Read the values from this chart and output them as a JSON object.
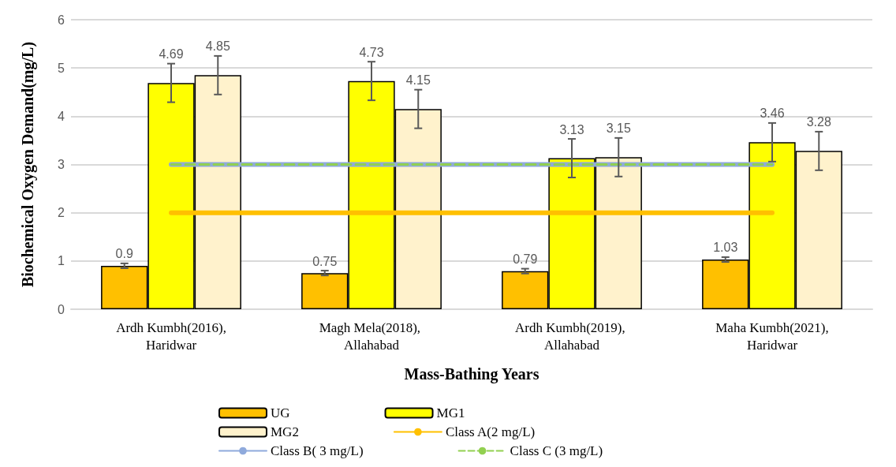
{
  "chart_data": {
    "type": "bar",
    "xlabel": "Mass-Bathing Years",
    "ylabel": "Biochemical Oxygen Demand(mg/L)",
    "categories": [
      "Ardh Kumbh(2016),Haridwar",
      "Magh Mela(2018), Allahabad",
      "Ardh Kumbh(2019), Allahabad",
      "Maha Kumbh(2021),Haridwar"
    ],
    "series": [
      {
        "name": "UG",
        "color": "#ffc000",
        "values": [
          0.9,
          0.75,
          0.79,
          1.03
        ],
        "errors": [
          0.05,
          0.05,
          0.05,
          0.05
        ],
        "value_labels": [
          "0.9",
          "0.75",
          "0.79",
          "1.03"
        ]
      },
      {
        "name": "MG1",
        "color": "#ffff00",
        "values": [
          4.69,
          4.73,
          3.13,
          3.46
        ],
        "errors": [
          0.4,
          0.4,
          0.4,
          0.4
        ],
        "value_labels": [
          "4.69",
          "4.73",
          "3.13",
          "3.46"
        ]
      },
      {
        "name": "MG2",
        "color": "#fff2cc",
        "values": [
          4.85,
          4.15,
          3.15,
          3.28
        ],
        "errors": [
          0.4,
          0.4,
          0.4,
          0.4
        ],
        "value_labels": [
          "4.85",
          "4.15",
          "3.15",
          "3.28"
        ]
      },
      {
        "name": "Class A(2 mg/L)",
        "type": "line",
        "color": "#ffc000",
        "values": [
          2,
          2,
          2,
          2
        ],
        "line_style": "solid"
      },
      {
        "name": "Class B( 3 mg/L)",
        "type": "line",
        "color": "#8faadc",
        "values": [
          3,
          3,
          3,
          3
        ],
        "line_style": "solid"
      },
      {
        "name": "Class C (3 mg/L)",
        "type": "line",
        "color": "#92d050",
        "values": [
          3,
          3,
          3,
          3
        ],
        "line_style": "dashed"
      }
    ],
    "ylim": [
      0,
      6
    ],
    "yticks": [
      0,
      1,
      2,
      3,
      4,
      5,
      6
    ],
    "grid": "y",
    "legend": "bottom",
    "marker": "none"
  }
}
